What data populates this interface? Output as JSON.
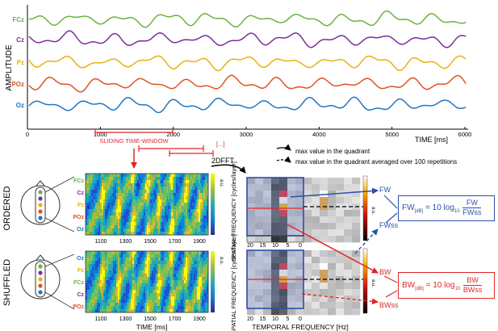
{
  "top_panel": {
    "ylabel": "AMPLITUDE",
    "xlabel": "TIME [ms]",
    "x_ticks": [
      "0",
      "1000",
      "2000",
      "3000",
      "4000",
      "5000",
      "6000"
    ],
    "channels": [
      {
        "label": "FCz",
        "color": "#6cb33f"
      },
      {
        "label": "Cz",
        "color": "#7b2d9c"
      },
      {
        "label": "Pz",
        "color": "#e8b10e"
      },
      {
        "label": "POz",
        "color": "#e0531f"
      },
      {
        "label": "Oz",
        "color": "#1f77c4"
      }
    ]
  },
  "window": {
    "label": "SLIDING TIME-WINDOW",
    "ellipsis": "[...]",
    "color": "#e0262a"
  },
  "fft": {
    "label": "2DFFT"
  },
  "legend": {
    "solid": "max value in the quadrant",
    "dashed": "max value in the quadrant averaged over 100 repetitions"
  },
  "ordered": {
    "title": "ORDERED",
    "channels": [
      "FCz",
      "Cz",
      "Pz",
      "POz",
      "Oz"
    ],
    "colorbar_label": "a.u.",
    "x_ticks": [
      "1100",
      "1300",
      "1500",
      "1700",
      "1900"
    ]
  },
  "shuffled": {
    "title": "SHUFFLED",
    "channels": [
      "Oz",
      "Pz",
      "FCz",
      "Cz",
      "POz"
    ],
    "colorbar_label": "a.u.",
    "x_ticks": [
      "1100",
      "1300",
      "1500",
      "1700",
      "1900"
    ],
    "xlabel": "TIME [ms]"
  },
  "spectra": {
    "ylabel": "SPATIAL FREQUENCY [cycles/layer]",
    "xlabel": "TEMPORAL FREQUENCY [Hz]",
    "x_ticks": [
      "20",
      "15",
      "10",
      "5",
      "0"
    ],
    "colorbar_label": "a.u."
  },
  "fw": {
    "label": "FW",
    "ss_label": "FWss",
    "color": "#2b4fa8",
    "eq_lhs": "FW",
    "eq_sub": "[dB]",
    "eq_mid": " = 10 log",
    "eq_log_sub": "10",
    "eq_num": "FW",
    "eq_den": "FWss"
  },
  "bw": {
    "label": "BW",
    "ss_label": "BWss",
    "color": "#e0262a",
    "eq_lhs": "BW",
    "eq_sub": "[dB]",
    "eq_mid": " = 10 log",
    "eq_log_sub": "10",
    "eq_num": "BW",
    "eq_den": "BWss"
  }
}
